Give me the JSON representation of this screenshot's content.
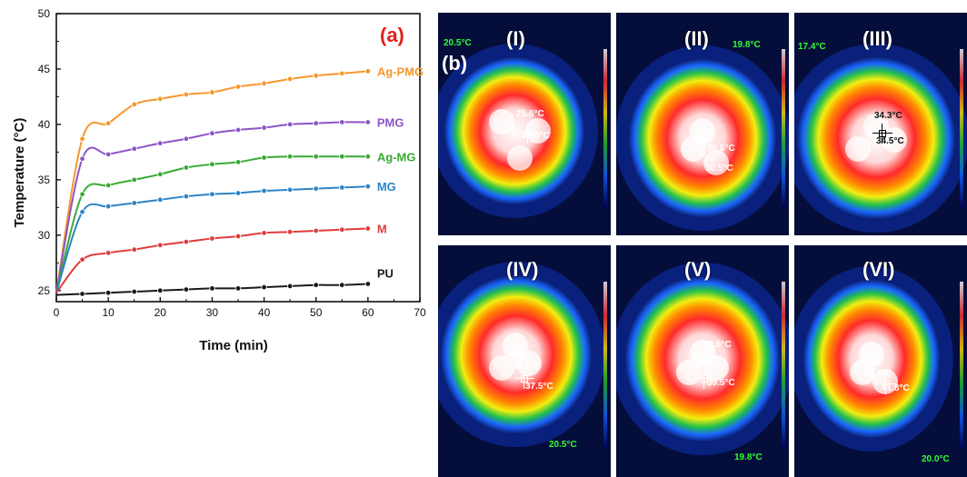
{
  "chart_data": {
    "type": "line",
    "panel_label": "(a)",
    "xlabel": "Time (min)",
    "ylabel": "Temperature (°C)",
    "xlim": [
      0,
      70
    ],
    "ylim": [
      24,
      50
    ],
    "xticks": [
      0,
      10,
      20,
      30,
      40,
      50,
      60,
      70
    ],
    "yticks": [
      25,
      30,
      35,
      40,
      45,
      50
    ],
    "grid": false,
    "x": [
      0,
      5,
      10,
      15,
      20,
      25,
      30,
      35,
      40,
      45,
      50,
      55,
      60
    ],
    "series": [
      {
        "name": "Ag-PMG",
        "color": "#f7972b",
        "values": [
          24.8,
          38.7,
          40.1,
          41.8,
          42.3,
          42.7,
          42.9,
          43.4,
          43.7,
          44.1,
          44.4,
          44.6,
          44.8
        ]
      },
      {
        "name": "PMG",
        "color": "#8b55c8",
        "values": [
          24.8,
          36.9,
          37.3,
          37.8,
          38.3,
          38.7,
          39.2,
          39.5,
          39.7,
          40.0,
          40.1,
          40.2,
          40.2
        ]
      },
      {
        "name": "Ag-MG",
        "color": "#3aaa35",
        "values": [
          24.8,
          33.7,
          34.5,
          35.0,
          35.5,
          36.1,
          36.4,
          36.6,
          37.0,
          37.1,
          37.1,
          37.1,
          37.1
        ]
      },
      {
        "name": "MG",
        "color": "#2e84c6",
        "values": [
          24.8,
          32.1,
          32.6,
          32.9,
          33.2,
          33.5,
          33.7,
          33.8,
          34.0,
          34.1,
          34.2,
          34.3,
          34.4
        ]
      },
      {
        "name": "M",
        "color": "#e03c3c",
        "values": [
          24.8,
          27.8,
          28.4,
          28.7,
          29.1,
          29.4,
          29.7,
          29.9,
          30.2,
          30.3,
          30.4,
          30.5,
          30.6
        ]
      },
      {
        "name": "PU",
        "color": "#1a1a1a",
        "values": [
          24.6,
          24.7,
          24.8,
          24.9,
          25.0,
          25.1,
          25.2,
          25.2,
          25.3,
          25.4,
          25.5,
          25.5,
          25.6
        ]
      }
    ]
  },
  "thermal_images": {
    "panel_label": "(b)",
    "panels": [
      {
        "label": "(I)",
        "ambient": "20.5°C",
        "spot1": "25.6°C",
        "spot2": "25.5°C"
      },
      {
        "label": "(II)",
        "ambient": "19.8°C",
        "spot1": "30.5°C",
        "spot2": "30.5°C"
      },
      {
        "label": "(III)",
        "ambient": "17.4°C",
        "spot1": "34.3°C",
        "spot2": "34.5°C"
      },
      {
        "label": "(IV)",
        "ambient": "20.5°C",
        "spot1": "37.1°C",
        "spot2": "37.5°C"
      },
      {
        "label": "(V)",
        "ambient": "19.8°C",
        "spot1": "39.6°C",
        "spot2": "39.5°C"
      },
      {
        "label": "(VI)",
        "ambient": "20.0°C",
        "spot1": "44.7°C",
        "spot2": "41.8°C"
      }
    ]
  }
}
